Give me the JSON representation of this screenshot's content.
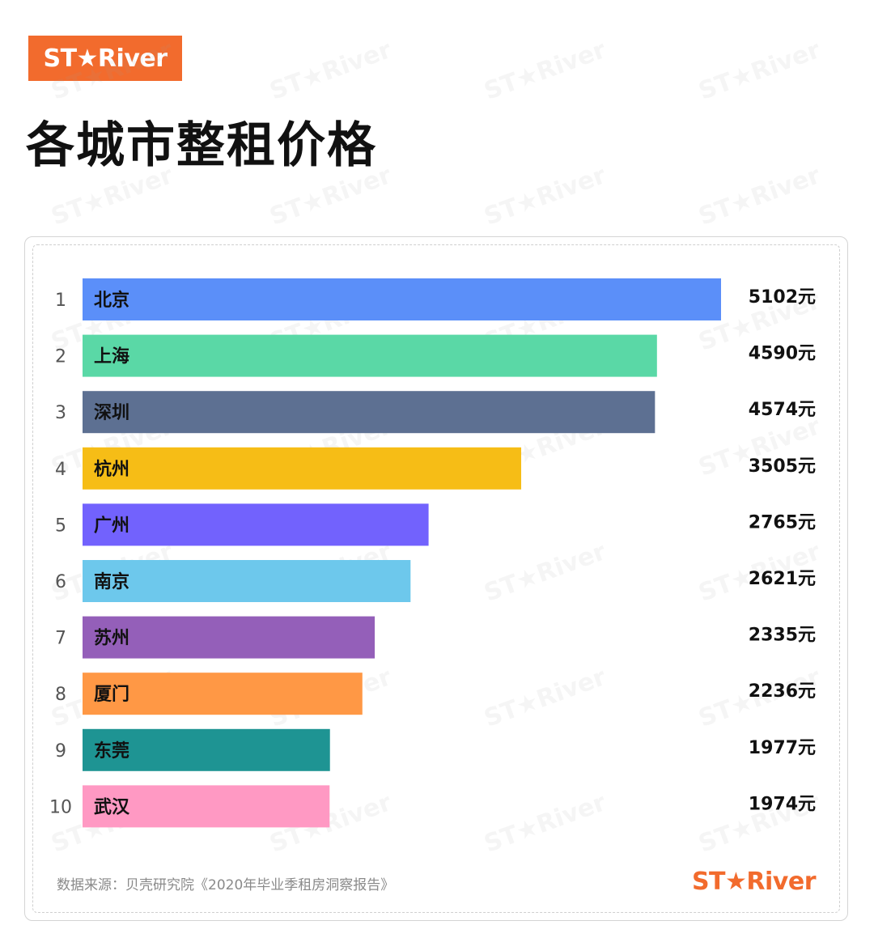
{
  "brand": {
    "logo_text": "ST★River",
    "watermark_text": "ST★River",
    "color": "#f26b2d"
  },
  "title": "各城市整租价格",
  "source_note": "数据来源：贝壳研究院《2020年毕业季租房洞察报告》",
  "chart_data": {
    "type": "bar",
    "orientation": "horizontal",
    "title": "各城市整租价格",
    "xlabel": "",
    "ylabel": "",
    "xlim": [
      0,
      5102
    ],
    "grid": false,
    "unit": "元",
    "ranks": [
      "1",
      "2",
      "3",
      "4",
      "5",
      "6",
      "7",
      "8",
      "9",
      "10"
    ],
    "categories": [
      "北京",
      "上海",
      "深圳",
      "杭州",
      "广州",
      "南京",
      "苏州",
      "厦门",
      "东莞",
      "武汉"
    ],
    "values": [
      5102,
      4590,
      4574,
      3505,
      2765,
      2621,
      2335,
      2236,
      1977,
      1974
    ],
    "value_labels": [
      "5102元",
      "4590元",
      "4574元",
      "3505元",
      "2765元",
      "2621元",
      "2335元",
      "2236元",
      "1977元",
      "1974元"
    ],
    "colors": [
      "#5b8ff9",
      "#5ad8a6",
      "#5d7092",
      "#f6bd16",
      "#7262fd",
      "#6dc8ec",
      "#945fb9",
      "#ff9845",
      "#1e9493",
      "#ff99c3"
    ]
  }
}
